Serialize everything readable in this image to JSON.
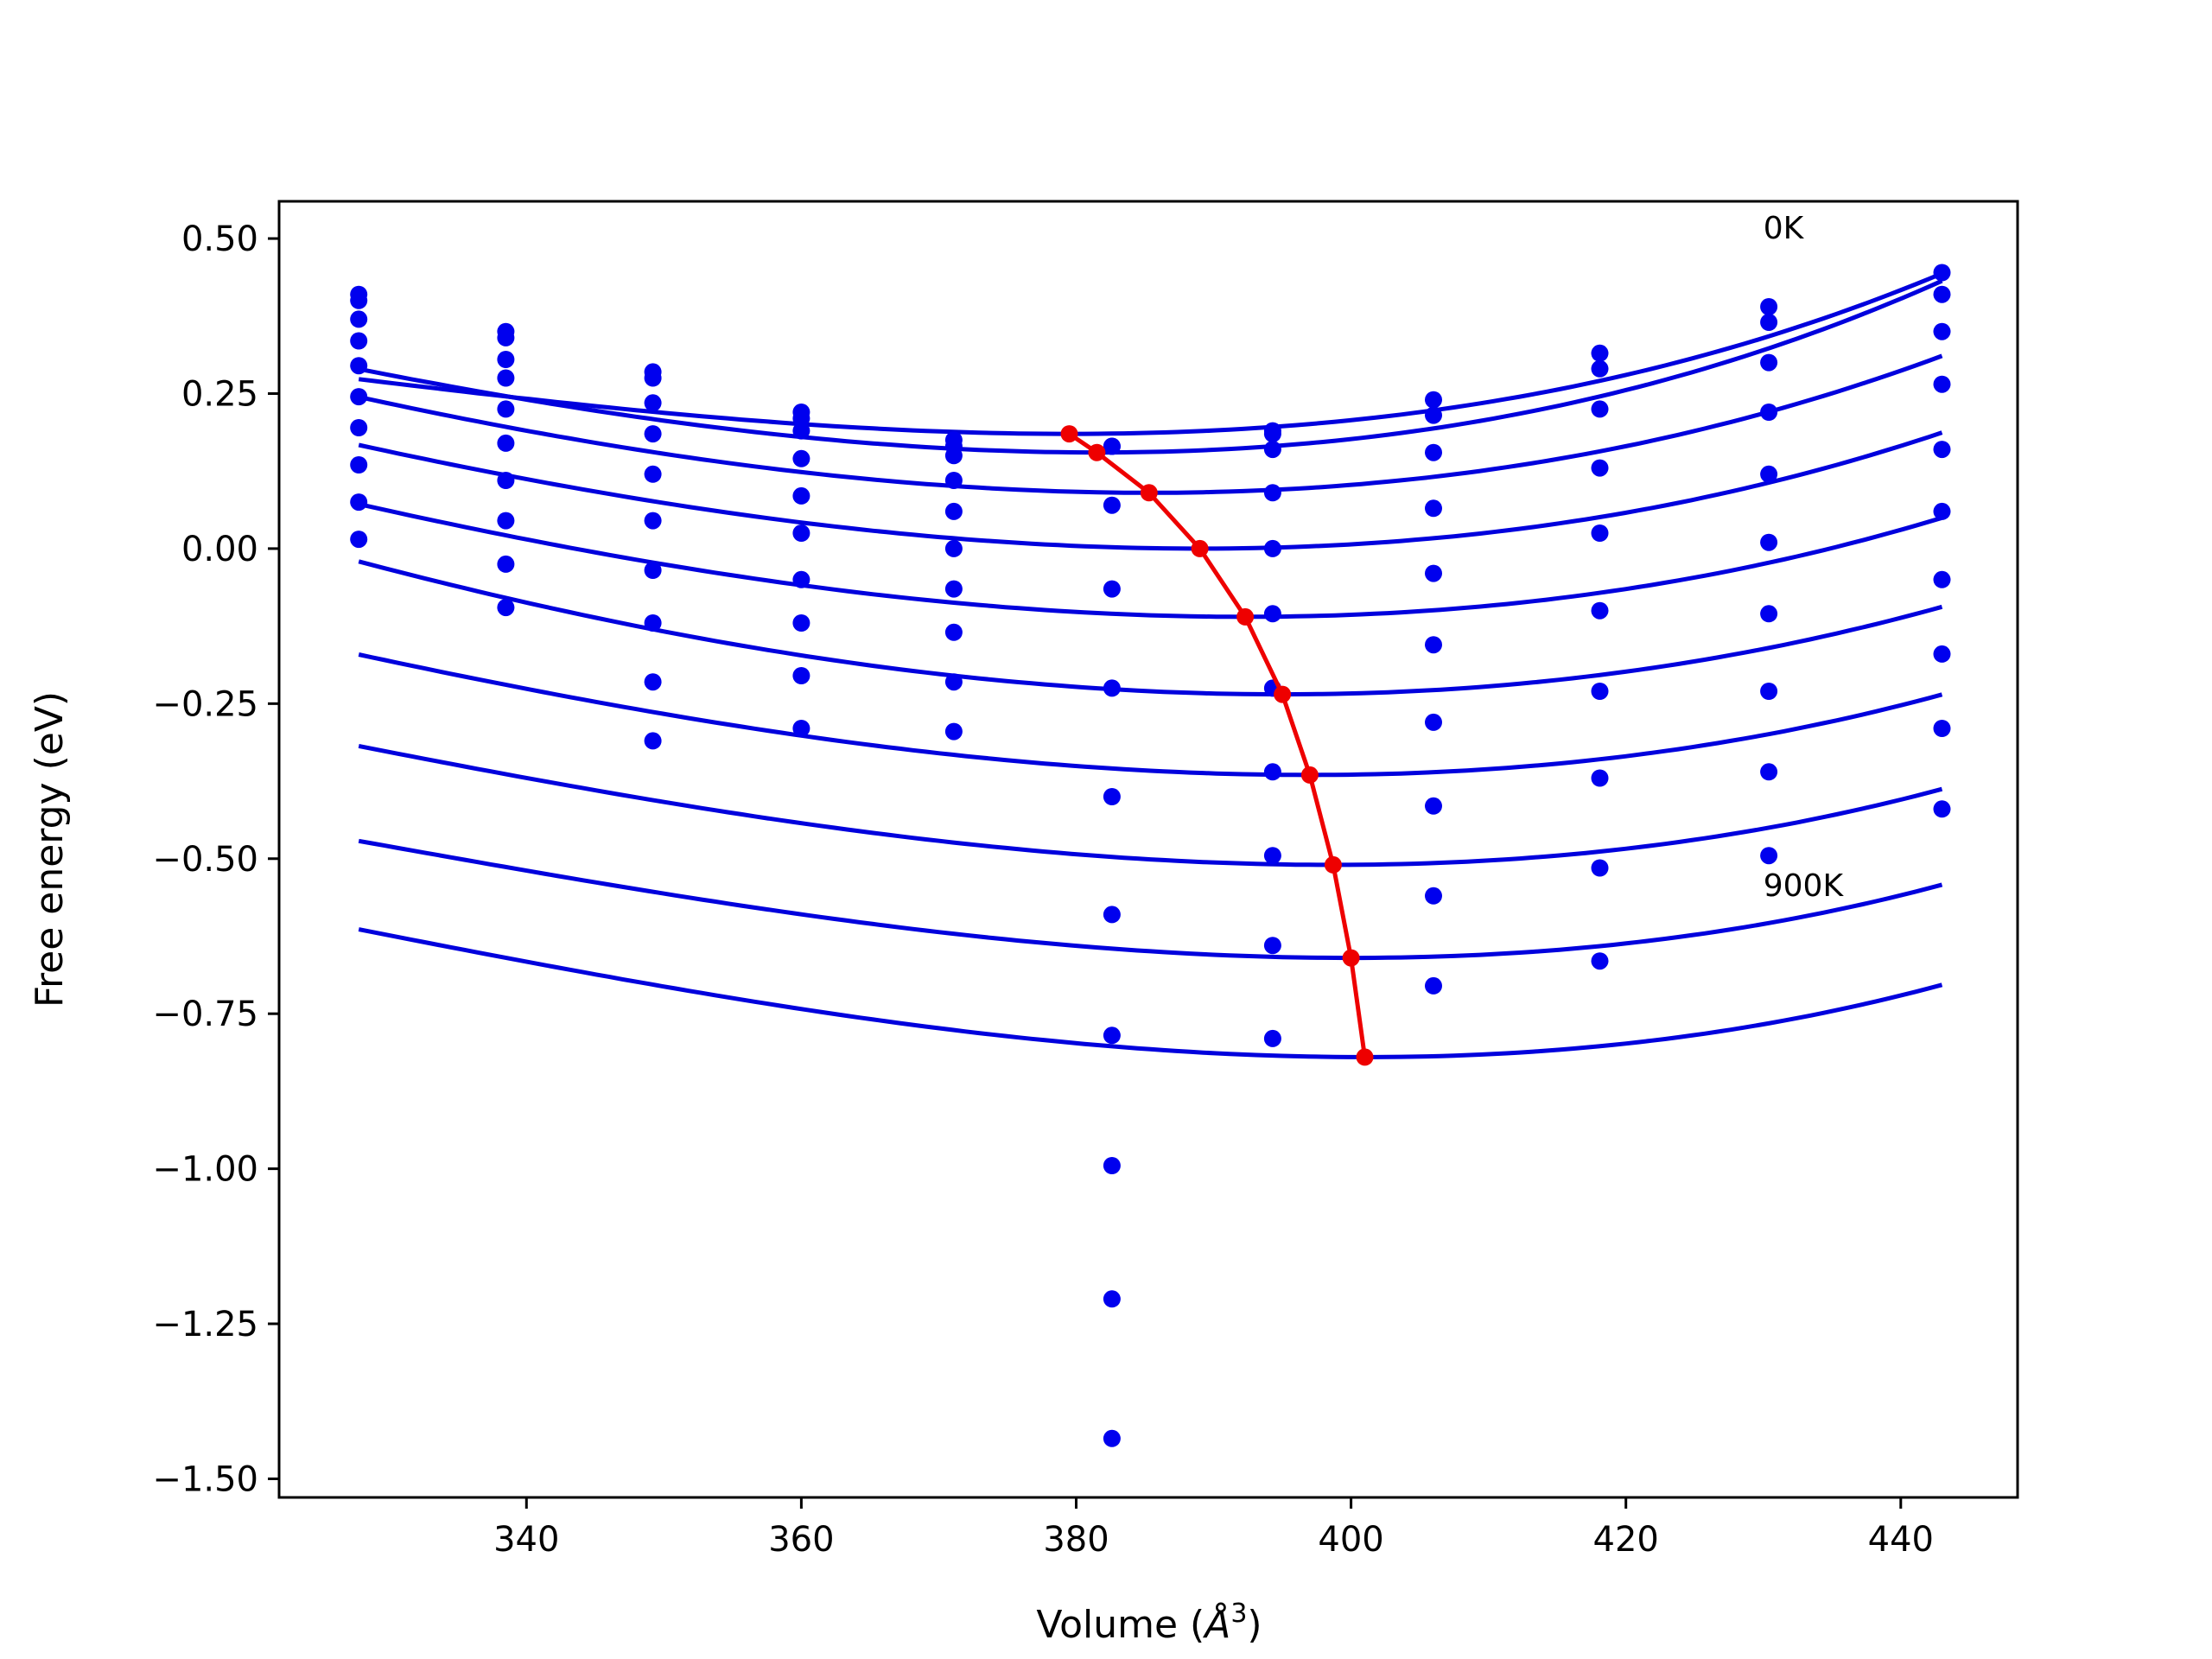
{
  "chart_data": {
    "type": "scatter",
    "xlabel": "Volume (",
    "xlabel_unit_base": "Å",
    "xlabel_unit_exp": "3",
    "xlabel_close": ")",
    "ylabel": "Free energy (eV)",
    "xlim": [
      322,
      448.5
    ],
    "ylim": [
      -1.53,
      0.56
    ],
    "x_ticks": [
      340,
      360,
      380,
      400,
      420,
      440
    ],
    "x_tick_labels": [
      "340",
      "360",
      "380",
      "400",
      "420",
      "440"
    ],
    "y_ticks": [
      0.5,
      0.25,
      0.0,
      -0.25,
      -0.5,
      -0.75,
      -1.0,
      -1.25,
      -1.5
    ],
    "y_tick_labels": [
      "0.50",
      "0.25",
      "0.00",
      "−0.25",
      "−0.50",
      "−0.75",
      "−1.00",
      "−1.25",
      "−1.50"
    ],
    "grid": false,
    "legend": "none",
    "annotations": [
      {
        "text": "0K",
        "x": 430,
        "y": 0.5
      },
      {
        "text": "900K",
        "x": 430,
        "y": -0.56
      }
    ],
    "colors": {
      "points": "#0000ee",
      "fits": "#0000dd",
      "minimum_path": "#ee0000",
      "axes": "#000000"
    },
    "volumes": [
      327.8,
      338.5,
      349.2,
      360.0,
      371.1,
      382.6,
      394.3,
      406.0,
      418.1,
      430.4,
      443.0
    ],
    "series": [
      {
        "values": [
          0.41,
          0.35,
          0.285,
          0.22,
          0.175,
          0.165,
          0.19,
          0.24,
          0.315,
          0.39,
          0.445
        ]
      },
      {
        "values": [
          0.4,
          0.34,
          0.275,
          0.21,
          0.165,
          0.165,
          0.185,
          0.215,
          0.29,
          0.365,
          0.41
        ]
      },
      {
        "values": [
          0.37,
          0.305,
          0.235,
          0.19,
          0.15,
          0.07,
          0.16,
          0.155,
          0.225,
          0.3,
          0.35
        ]
      },
      {
        "values": [
          0.335,
          0.275,
          0.185,
          0.145,
          0.11,
          -0.065,
          0.09,
          0.065,
          0.13,
          0.22,
          0.265
        ]
      },
      {
        "values": [
          0.295,
          0.225,
          0.12,
          0.085,
          0.06,
          -0.225,
          0.0,
          -0.04,
          0.025,
          0.12,
          0.16
        ]
      },
      {
        "values": [
          0.245,
          0.17,
          0.045,
          0.025,
          0.0,
          -0.4,
          -0.105,
          -0.155,
          -0.1,
          0.01,
          0.06
        ]
      },
      {
        "values": [
          0.195,
          0.11,
          -0.035,
          -0.05,
          -0.065,
          -0.59,
          -0.225,
          -0.28,
          -0.23,
          -0.105,
          -0.05
        ]
      },
      {
        "values": [
          0.135,
          0.045,
          -0.12,
          -0.12,
          -0.135,
          -0.785,
          -0.36,
          -0.415,
          -0.37,
          -0.23,
          -0.17
        ]
      },
      {
        "values": [
          0.075,
          -0.025,
          -0.215,
          -0.205,
          -0.215,
          -0.995,
          -0.495,
          -0.56,
          -0.515,
          -0.36,
          -0.29
        ]
      },
      {
        "values": [
          0.015,
          -0.095,
          -0.31,
          -0.29,
          -0.295,
          -1.21,
          -0.64,
          -0.705,
          -0.665,
          -0.495,
          -0.42
        ]
      },
      {
        "values": [
          null,
          null,
          null,
          null,
          null,
          -1.435,
          -0.79,
          null,
          null,
          null,
          null
        ]
      }
    ],
    "fits": [
      {
        "v0": 379.5,
        "e0": 0.185,
        "a": 4.7e-05,
        "b": 2.7e-07
      },
      {
        "v0": 381.5,
        "e0": 0.155,
        "a": 5.9e-05,
        "b": 2.3e-07
      },
      {
        "v0": 385.3,
        "e0": 0.09,
        "a": 5.65e-05,
        "b": 1.7e-07
      },
      {
        "v0": 389.0,
        "e0": 0.0,
        "a": 5.5e-05,
        "b": 1.7e-07
      },
      {
        "v0": 392.3,
        "e0": -0.11,
        "a": 5.4e-05,
        "b": 1.6e-07
      },
      {
        "v0": 395.0,
        "e0": -0.235,
        "a": 5.55e-05,
        "b": 1.2e-07
      },
      {
        "v0": 397.0,
        "e0": -0.365,
        "a": 5.3e-05,
        "b": 1.8e-07
      },
      {
        "v0": 398.7,
        "e0": -0.51,
        "a": 5.3e-05,
        "b": 2.1e-07
      },
      {
        "v0": 400.0,
        "e0": -0.66,
        "a": 5.35e-05,
        "b": 2.4e-07
      },
      {
        "v0": 401.0,
        "e0": -0.82,
        "a": 5.6e-05,
        "b": 2.4e-07
      }
    ],
    "fit_range": [
      327.8,
      443.0
    ],
    "minimum_path": {
      "x": [
        379.5,
        381.5,
        385.3,
        389.0,
        392.3,
        395.0,
        397.0,
        398.7,
        400.0,
        401.0
      ],
      "y": [
        0.185,
        0.155,
        0.09,
        0.0,
        -0.11,
        -0.235,
        -0.365,
        -0.51,
        -0.66,
        -0.82
      ]
    }
  }
}
